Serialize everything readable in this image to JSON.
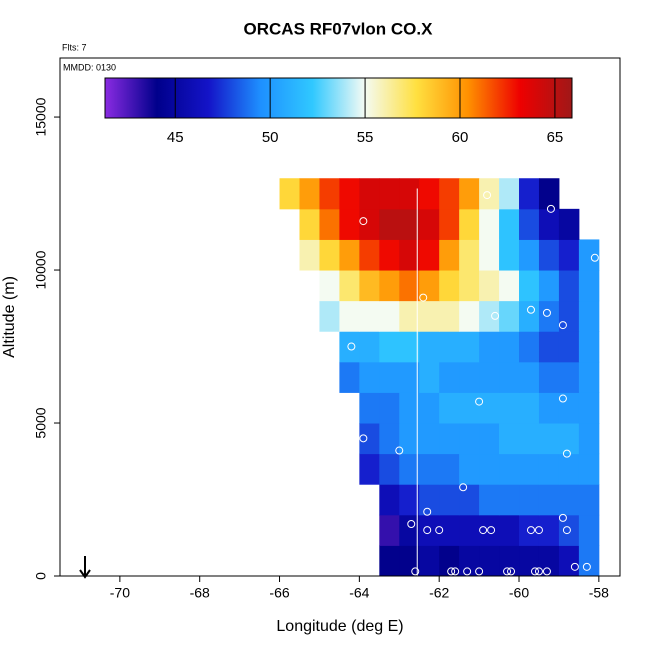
{
  "chart_data": {
    "type": "heatmap",
    "title": "ORCAS RF07vlon CO.X",
    "notes": [
      "Flts: 7",
      "MMDD: 0130"
    ],
    "x_label": "Longitude (deg E)",
    "y_label": "Altitude (m)",
    "xlim": [
      -71.5,
      -57.47
    ],
    "xticks": [
      -70,
      -68,
      -66,
      -64,
      -62,
      -60,
      -58
    ],
    "ylim": [
      0,
      16930
    ],
    "yticks": [
      0,
      5000,
      10000,
      15000
    ],
    "zlim": [
      41.3,
      65.9
    ],
    "zticks": [
      45,
      50,
      55,
      60,
      65
    ],
    "colorscale": [
      "#8a2be2",
      "#00008b",
      "#1414c8",
      "#1e90ff",
      "#30c8ff",
      "#f4fbf4",
      "#ffe040",
      "#ff9000",
      "#ee0000",
      "#a01818"
    ],
    "x": [
      -65.75,
      -65.25,
      -64.75,
      -64.25,
      -63.75,
      -63.25,
      -62.75,
      -62.25,
      -61.75,
      -61.25,
      -60.75,
      -60.25,
      -59.75,
      -59.25,
      -58.75,
      -58.25
    ],
    "y": [
      500,
      1500,
      2500,
      3500,
      4500,
      5500,
      6500,
      7500,
      8500,
      9500,
      10500,
      11500,
      12500
    ],
    "z": [
      [
        null,
        null,
        null,
        null,
        null,
        44,
        44,
        45,
        44,
        45,
        45,
        45,
        45,
        45,
        46,
        49
      ],
      [
        null,
        null,
        null,
        null,
        null,
        43,
        45,
        46,
        46,
        46,
        46,
        46,
        47,
        47,
        48,
        49
      ],
      [
        null,
        null,
        null,
        null,
        null,
        46,
        47,
        48,
        48,
        48,
        49,
        49,
        49,
        49,
        49,
        49
      ],
      [
        null,
        null,
        null,
        null,
        47,
        48,
        49,
        49,
        49,
        50,
        50,
        50,
        50,
        50,
        50,
        50
      ],
      [
        null,
        null,
        null,
        null,
        48,
        49,
        50,
        50,
        50,
        50,
        50,
        51,
        51,
        51,
        51,
        50
      ],
      [
        null,
        null,
        null,
        null,
        49,
        49,
        50,
        50,
        51,
        51,
        51,
        51,
        51,
        50,
        50,
        50
      ],
      [
        null,
        null,
        null,
        49,
        50,
        50,
        50,
        51,
        50,
        50,
        50,
        50,
        50,
        49,
        49,
        50
      ],
      [
        null,
        null,
        null,
        51,
        51,
        52,
        52,
        51,
        51,
        51,
        50,
        50,
        49,
        48,
        48,
        50
      ],
      [
        null,
        null,
        54,
        55,
        55,
        55,
        56,
        56,
        56,
        55,
        54,
        53,
        51,
        49,
        48,
        50
      ],
      [
        null,
        null,
        55,
        57,
        59,
        60,
        61,
        60,
        58,
        57,
        56,
        55,
        52,
        50,
        48,
        50
      ],
      [
        null,
        56,
        58,
        60,
        62,
        63,
        64,
        63,
        60,
        57,
        55,
        52,
        50,
        48,
        47,
        50
      ],
      [
        null,
        58,
        61,
        63,
        64,
        65,
        65,
        64,
        62,
        58,
        55,
        52,
        48,
        46,
        45,
        null
      ],
      [
        58,
        60,
        62,
        63,
        64,
        64,
        64,
        63,
        62,
        60,
        56,
        54,
        47,
        44,
        null,
        null
      ]
    ],
    "vline": -62.55,
    "points": {
      "x": [
        -60.8,
        -59.2,
        -63.9,
        -58.1,
        -62.4,
        -60.6,
        -59.7,
        -59.3,
        -58.9,
        -64.2,
        -61.0,
        -58.9,
        -63.9,
        -63.0,
        -58.8,
        -61.4,
        -62.3,
        -63.8,
        -58.9,
        -62.7,
        -62.3,
        -62.0,
        -60.9,
        -60.7,
        -59.7,
        -59.5,
        -58.8,
        -62.6,
        -61.7,
        -61.6,
        -61.3,
        -61.0,
        -60.3,
        -60.2,
        -59.6,
        -59.5,
        -59.3,
        -58.6,
        -58.3
      ],
      "y": [
        12450,
        12000,
        11600,
        10400,
        9100,
        8500,
        8700,
        8600,
        8200,
        7500,
        5700,
        5800,
        4500,
        4100,
        4000,
        2900,
        2100,
        2000,
        1900,
        1700,
        1500,
        1500,
        1500,
        1500,
        1500,
        1500,
        1500,
        150,
        150,
        150,
        150,
        150,
        150,
        150,
        150,
        150,
        150,
        300,
        300
      ]
    }
  }
}
